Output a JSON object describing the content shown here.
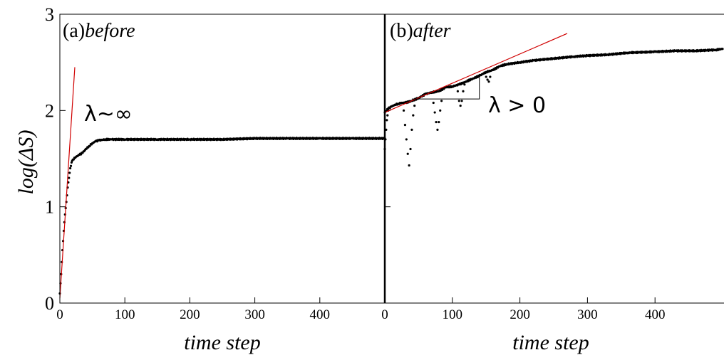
{
  "chart_data": [
    {
      "type": "scatter",
      "panel_tag": "(a)",
      "panel_word": "before",
      "xlabel": "time step",
      "ylabel": "log(ΔS)",
      "xlim": [
        0,
        500
      ],
      "ylim": [
        0,
        3
      ],
      "xticks": [
        0,
        100,
        200,
        300,
        400
      ],
      "yticks": [
        0,
        1,
        2,
        3
      ],
      "annotation": "λ~∞",
      "fit_line": {
        "color": "#d00000",
        "x": [
          0,
          23
        ],
        "y": [
          0.05,
          2.45
        ]
      },
      "series": [
        {
          "x": [
            0,
            2,
            4,
            6,
            8,
            10,
            12,
            14,
            16,
            18,
            20,
            25,
            30,
            35,
            40,
            45,
            50,
            55,
            60,
            70,
            80,
            100,
            150,
            200,
            250,
            300,
            350,
            400,
            450,
            500
          ],
          "y": [
            0.1,
            0.3,
            0.55,
            0.75,
            0.92,
            1.05,
            1.2,
            1.3,
            1.4,
            1.46,
            1.49,
            1.52,
            1.54,
            1.56,
            1.6,
            1.63,
            1.66,
            1.68,
            1.69,
            1.7,
            1.7,
            1.7,
            1.7,
            1.7,
            1.7,
            1.71,
            1.71,
            1.71,
            1.71,
            1.71
          ]
        }
      ]
    },
    {
      "type": "scatter",
      "panel_tag": "(b)",
      "panel_word": "after",
      "xlabel": "time step",
      "ylabel": "",
      "xlim": [
        0,
        500
      ],
      "ylim": [
        0,
        3
      ],
      "xticks": [
        0,
        100,
        200,
        300,
        400
      ],
      "annotation": "λ > 0",
      "fit_line": {
        "color": "#d00000",
        "x": [
          0,
          270
        ],
        "y": [
          1.98,
          2.8
        ]
      },
      "triangle": {
        "x": [
          40,
          140
        ],
        "y": [
          2.12,
          2.38
        ]
      },
      "series": [
        {
          "x": [
            0,
            5,
            10,
            15,
            20,
            25,
            30,
            40,
            50,
            60,
            70,
            80,
            90,
            100,
            110,
            120,
            130,
            140,
            150,
            160,
            170,
            180,
            200,
            220,
            250,
            280,
            300,
            330,
            360,
            400,
            430,
            460,
            490,
            500
          ],
          "y": [
            1.98,
            2.02,
            2.04,
            2.06,
            2.07,
            2.08,
            2.08,
            2.1,
            2.13,
            2.17,
            2.19,
            2.2,
            2.24,
            2.25,
            2.27,
            2.3,
            2.33,
            2.36,
            2.4,
            2.42,
            2.46,
            2.48,
            2.5,
            2.52,
            2.54,
            2.56,
            2.57,
            2.58,
            2.6,
            2.61,
            2.62,
            2.62,
            2.63,
            2.64
          ]
        },
        {
          "x": [
            0,
            1,
            2,
            3,
            4,
            5,
            28,
            30,
            32,
            34,
            36,
            38,
            40,
            42,
            44,
            72,
            74,
            76,
            78,
            80,
            82,
            84,
            108,
            110,
            112,
            114,
            116,
            118,
            150,
            152,
            154,
            156
          ],
          "y": [
            1.6,
            1.7,
            1.8,
            1.9,
            1.95,
            2.0,
            2.0,
            1.85,
            1.7,
            1.55,
            1.43,
            1.6,
            1.8,
            1.95,
            2.05,
            2.08,
            1.98,
            1.88,
            1.8,
            1.88,
            2.0,
            2.1,
            2.2,
            2.1,
            2.05,
            2.1,
            2.2,
            2.27,
            2.35,
            2.32,
            2.3,
            2.35
          ]
        }
      ]
    }
  ]
}
